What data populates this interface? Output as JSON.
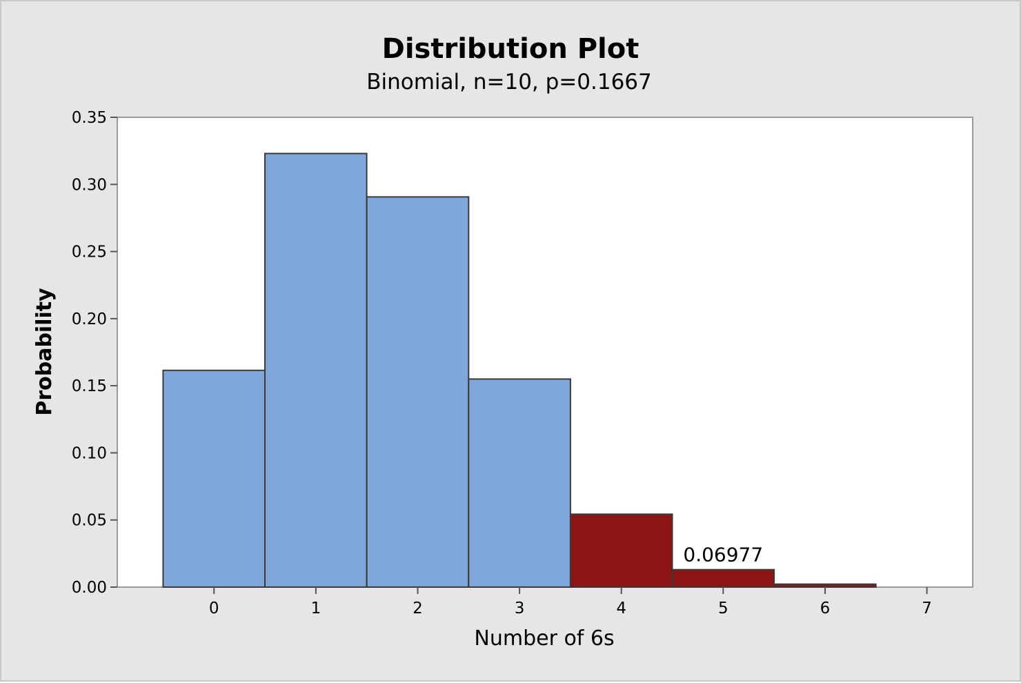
{
  "chart_data": {
    "type": "bar",
    "title": "Distribution Plot",
    "subtitle": "Binomial, n=10, p=0.1667",
    "xlabel": "Number of 6s",
    "ylabel": "Probability",
    "x": [
      0,
      1,
      2,
      3,
      4,
      5,
      6
    ],
    "values": [
      0.1615,
      0.323,
      0.2907,
      0.155,
      0.0543,
      0.013,
      0.0022
    ],
    "x_ticks": [
      "0",
      "1",
      "2",
      "3",
      "4",
      "5",
      "6",
      "7"
    ],
    "y_ticks": [
      "0.00",
      "0.05",
      "0.10",
      "0.15",
      "0.20",
      "0.25",
      "0.30",
      "0.35"
    ],
    "xlim": [
      -0.95,
      7.45
    ],
    "ylim": [
      0,
      0.35
    ],
    "shaded_from": 4,
    "colors": {
      "bar": "#7fa7d9",
      "shaded": "#8e1414",
      "outline": "#3a3a3a",
      "plot_bg": "#ffffff",
      "frame_bg": "#e6e6e6"
    },
    "annotation": {
      "text": "0.06977",
      "x": 5,
      "y": 0.013
    },
    "grid": false
  }
}
